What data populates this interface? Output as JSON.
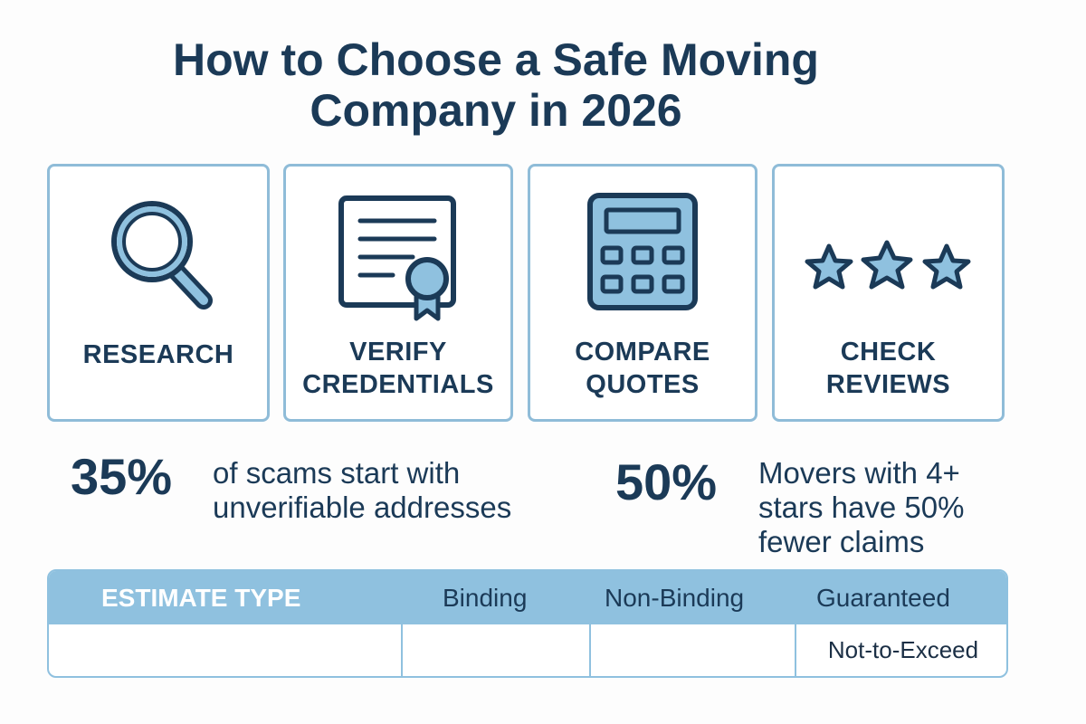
{
  "title": {
    "line1": "How to Choose a Safe Moving",
    "line2": "Company in 2026"
  },
  "colors": {
    "navy": "#1b3a57",
    "light_blue": "#8fc1df",
    "border": "#8fbcd8"
  },
  "cards": [
    {
      "icon": "magnifying-glass-icon",
      "label_lines": [
        "RESEARCH"
      ]
    },
    {
      "icon": "certificate-icon",
      "label_lines": [
        "VERIFY",
        "CREDENTIALS"
      ]
    },
    {
      "icon": "calculator-icon",
      "label_lines": [
        "COMPARE",
        "QUOTES"
      ]
    },
    {
      "icon": "three-stars-icon",
      "label_lines": [
        "CHECK",
        "REVIEWS"
      ]
    }
  ],
  "stats": [
    {
      "value": "35%",
      "text_lines": [
        "of scams start with",
        "unverifiable addresses"
      ]
    },
    {
      "value": "50%",
      "text_lines": [
        "Movers with 4+",
        "stars have 50%",
        "fewer claims"
      ]
    }
  ],
  "table": {
    "headers": [
      "ESTIMATE TYPE",
      "Binding",
      "Non-Binding",
      "Guaranteed"
    ],
    "row": [
      "",
      "",
      "",
      "Not-to-Exceed"
    ]
  }
}
